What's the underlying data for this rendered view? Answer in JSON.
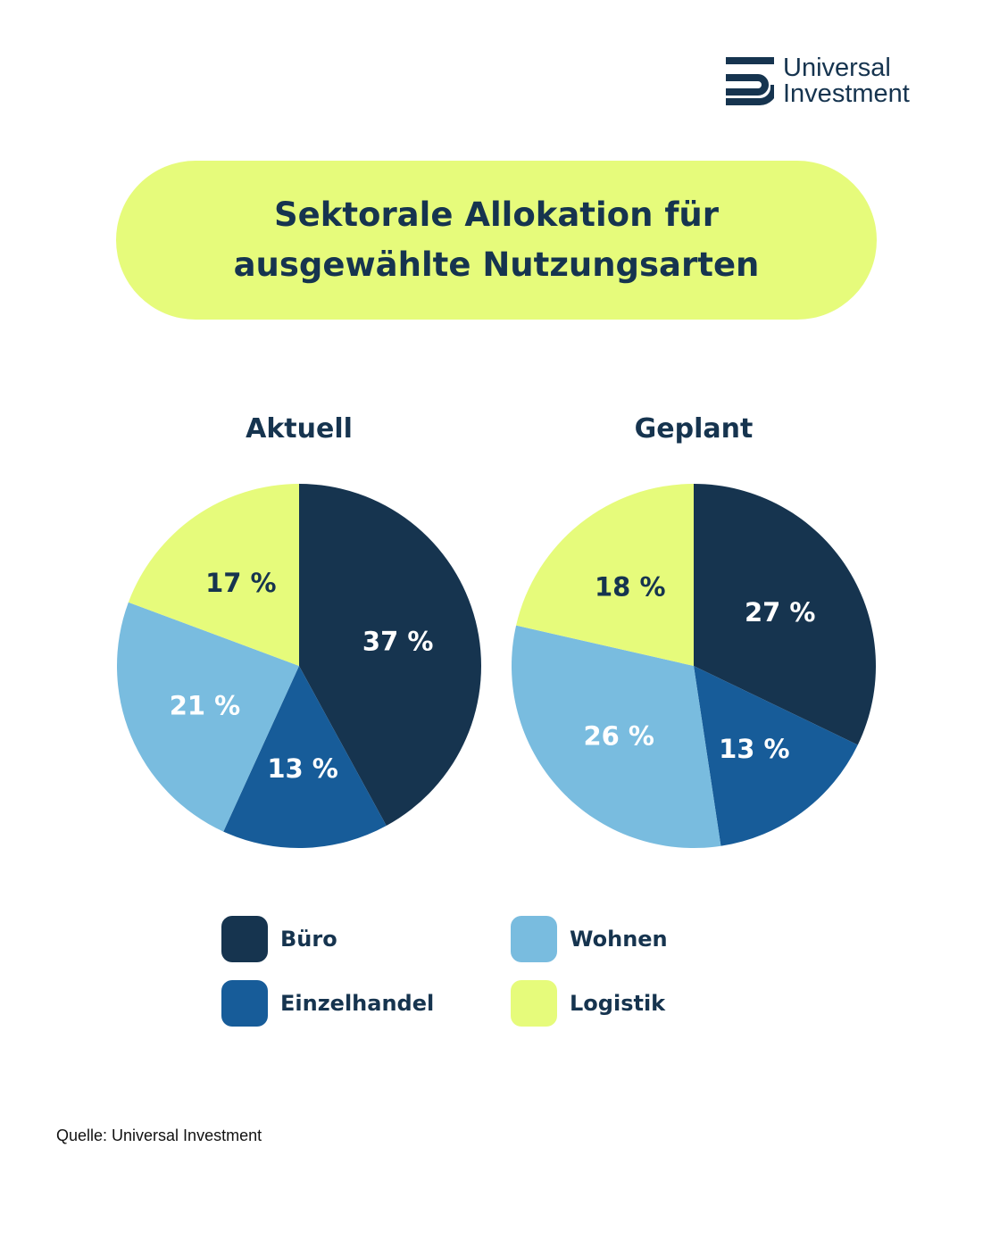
{
  "logo": {
    "line1": "Universal",
    "line2": "Investment"
  },
  "title": {
    "line1": "Sektorale Allokation für",
    "line2": "ausgewählte Nutzungsarten"
  },
  "source": "Quelle: Universal Investment",
  "colors": {
    "buero": "#16344f",
    "einzelhandel": "#175c99",
    "wohnen": "#79bcdf",
    "logistik": "#e6fb7b",
    "accent": "#e6fb7b"
  },
  "chart_data": [
    {
      "type": "pie",
      "title": "Aktuell",
      "categories": [
        "Büro",
        "Einzelhandel",
        "Wohnen",
        "Logistik"
      ],
      "values": [
        37,
        13,
        21,
        17
      ],
      "labels": [
        "37 %",
        "13 %",
        "21 %",
        "17 %"
      ],
      "colors": [
        "#16344f",
        "#175c99",
        "#79bcdf",
        "#e6fb7b"
      ],
      "label_colors": [
        "#ffffff",
        "#ffffff",
        "#ffffff",
        "#16344f"
      ],
      "start_angle_deg": 0,
      "direction": "clockwise",
      "legend": "bottom"
    },
    {
      "type": "pie",
      "title": "Geplant",
      "categories": [
        "Büro",
        "Einzelhandel",
        "Wohnen",
        "Logistik"
      ],
      "values": [
        27,
        13,
        26,
        18
      ],
      "labels": [
        "27 %",
        "13 %",
        "26 %",
        "18 %"
      ],
      "colors": [
        "#16344f",
        "#175c99",
        "#79bcdf",
        "#e6fb7b"
      ],
      "label_colors": [
        "#ffffff",
        "#ffffff",
        "#ffffff",
        "#16344f"
      ],
      "start_angle_deg": 0,
      "direction": "clockwise",
      "legend": "bottom"
    }
  ],
  "legend": [
    {
      "label": "Büro",
      "color": "#16344f"
    },
    {
      "label": "Einzelhandel",
      "color": "#175c99"
    },
    {
      "label": "Wohnen",
      "color": "#79bcdf"
    },
    {
      "label": "Logistik",
      "color": "#e6fb7b"
    }
  ]
}
